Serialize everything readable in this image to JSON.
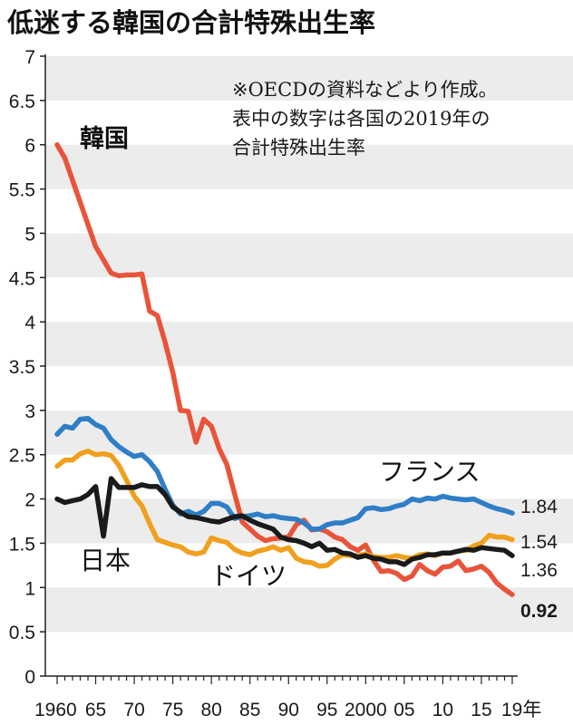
{
  "title": "低迷する韓国の合計特殊出生率",
  "note": [
    "※OECDの資料などより作成。",
    "表中の数字は各国の2019年の",
    "合計特殊出生率"
  ],
  "chart_data": {
    "type": "line",
    "title": "低迷する韓国の合計特殊出生率",
    "xlabel": "年",
    "ylabel": "",
    "ylim": [
      0,
      7
    ],
    "xlim": [
      1960,
      2019
    ],
    "yticks": [
      0,
      0.5,
      1,
      1.5,
      2,
      2.5,
      3,
      3.5,
      4,
      4.5,
      5,
      5.5,
      6,
      6.5,
      7
    ],
    "ytick_labels": [
      "0",
      "0.5",
      "1",
      "1.5",
      "2",
      "2.5",
      "3",
      "3.5",
      "4",
      "4.5",
      "5",
      "5.5",
      "6",
      "6.5",
      "7"
    ],
    "xticks": [
      1960,
      1965,
      1970,
      1975,
      1980,
      1985,
      1990,
      1995,
      2000,
      2005,
      2010,
      2015,
      2019
    ],
    "xtick_labels": [
      "1960",
      "65",
      "70",
      "75",
      "80",
      "85",
      "90",
      "95",
      "2000",
      "05",
      "10",
      "15",
      "19年"
    ],
    "x": [
      1960,
      1961,
      1962,
      1963,
      1964,
      1965,
      1966,
      1967,
      1968,
      1969,
      1970,
      1971,
      1972,
      1973,
      1974,
      1975,
      1976,
      1977,
      1978,
      1979,
      1980,
      1981,
      1982,
      1983,
      1984,
      1985,
      1986,
      1987,
      1988,
      1989,
      1990,
      1991,
      1992,
      1993,
      1994,
      1995,
      1996,
      1997,
      1998,
      1999,
      2000,
      2001,
      2002,
      2003,
      2004,
      2005,
      2006,
      2007,
      2008,
      2009,
      2010,
      2011,
      2012,
      2013,
      2014,
      2015,
      2016,
      2017,
      2018,
      2019
    ],
    "series": [
      {
        "name": "韓国",
        "color": "#e8543a",
        "values": [
          6.0,
          5.85,
          5.6,
          5.35,
          5.1,
          4.85,
          4.7,
          4.55,
          4.52,
          4.53,
          4.53,
          4.54,
          4.12,
          4.07,
          3.77,
          3.43,
          3.0,
          2.99,
          2.64,
          2.9,
          2.82,
          2.57,
          2.39,
          2.06,
          1.74,
          1.66,
          1.58,
          1.53,
          1.55,
          1.56,
          1.57,
          1.71,
          1.76,
          1.65,
          1.66,
          1.63,
          1.57,
          1.54,
          1.46,
          1.42,
          1.48,
          1.31,
          1.18,
          1.19,
          1.16,
          1.09,
          1.13,
          1.26,
          1.19,
          1.15,
          1.23,
          1.24,
          1.3,
          1.19,
          1.21,
          1.24,
          1.17,
          1.05,
          0.98,
          0.92
        ]
      },
      {
        "name": "フランス",
        "color": "#2f7ec6",
        "values": [
          2.73,
          2.82,
          2.8,
          2.9,
          2.91,
          2.84,
          2.8,
          2.67,
          2.59,
          2.53,
          2.48,
          2.5,
          2.42,
          2.31,
          2.11,
          1.93,
          1.83,
          1.86,
          1.82,
          1.86,
          1.95,
          1.95,
          1.91,
          1.78,
          1.8,
          1.81,
          1.83,
          1.8,
          1.81,
          1.79,
          1.78,
          1.77,
          1.73,
          1.66,
          1.66,
          1.71,
          1.73,
          1.73,
          1.76,
          1.79,
          1.89,
          1.9,
          1.88,
          1.89,
          1.92,
          1.94,
          2.0,
          1.98,
          2.01,
          2.0,
          2.03,
          2.01,
          2.0,
          1.99,
          2.0,
          1.96,
          1.92,
          1.89,
          1.87,
          1.84
        ]
      },
      {
        "name": "ドイツ",
        "color": "#f0a01e",
        "values": [
          2.37,
          2.44,
          2.44,
          2.51,
          2.54,
          2.5,
          2.51,
          2.49,
          2.38,
          2.21,
          2.03,
          1.92,
          1.72,
          1.54,
          1.51,
          1.48,
          1.46,
          1.4,
          1.38,
          1.4,
          1.56,
          1.53,
          1.51,
          1.43,
          1.39,
          1.37,
          1.41,
          1.43,
          1.46,
          1.42,
          1.45,
          1.33,
          1.29,
          1.28,
          1.24,
          1.25,
          1.32,
          1.37,
          1.36,
          1.36,
          1.38,
          1.35,
          1.34,
          1.34,
          1.36,
          1.34,
          1.33,
          1.37,
          1.38,
          1.36,
          1.39,
          1.39,
          1.41,
          1.42,
          1.47,
          1.5,
          1.59,
          1.57,
          1.57,
          1.54
        ]
      },
      {
        "name": "日本",
        "color": "#1a1a1a",
        "values": [
          2.0,
          1.96,
          1.98,
          2.0,
          2.05,
          2.14,
          1.58,
          2.23,
          2.13,
          2.13,
          2.13,
          2.16,
          2.14,
          2.14,
          2.05,
          1.91,
          1.85,
          1.8,
          1.79,
          1.77,
          1.75,
          1.74,
          1.77,
          1.8,
          1.81,
          1.76,
          1.72,
          1.69,
          1.66,
          1.57,
          1.54,
          1.53,
          1.5,
          1.46,
          1.5,
          1.42,
          1.43,
          1.39,
          1.38,
          1.34,
          1.36,
          1.33,
          1.32,
          1.29,
          1.29,
          1.26,
          1.32,
          1.34,
          1.37,
          1.37,
          1.39,
          1.39,
          1.41,
          1.43,
          1.42,
          1.45,
          1.44,
          1.43,
          1.42,
          1.36
        ]
      }
    ],
    "series_labels": [
      {
        "name": "韓国",
        "text": "韓国"
      },
      {
        "name": "フランス",
        "text": "フランス"
      },
      {
        "name": "ドイツ",
        "text": "ドイツ"
      },
      {
        "name": "日本",
        "text": "日本"
      }
    ],
    "end_labels": [
      {
        "name": "フランス",
        "text": "1.84",
        "bold": false
      },
      {
        "name": "ドイツ",
        "text": "1.54",
        "bold": false
      },
      {
        "name": "日本",
        "text": "1.36",
        "bold": false
      },
      {
        "name": "韓国",
        "text": "0.92",
        "bold": true
      }
    ],
    "grid": "alternating horizontal bands"
  }
}
